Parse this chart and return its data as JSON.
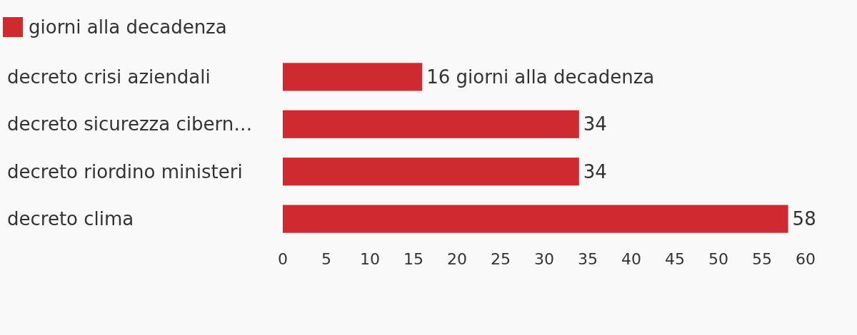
{
  "chart_data": {
    "type": "bar",
    "orientation": "horizontal",
    "categories": [
      "decreto crisi aziendali",
      "decreto sicurezza cibern…",
      "decreto riordino ministeri",
      "decreto clima"
    ],
    "series": [
      {
        "name": "giorni alla decadenza",
        "color": "#cf2a30",
        "values": [
          16,
          34,
          34,
          58
        ],
        "value_labels": [
          "16 giorni alla decadenza",
          "34",
          "34",
          "58"
        ]
      }
    ],
    "xlim": [
      0,
      60
    ],
    "xticks": [
      0,
      5,
      10,
      15,
      20,
      25,
      30,
      35,
      40,
      45,
      50,
      55,
      60
    ],
    "grid": false,
    "legend": "top left"
  }
}
